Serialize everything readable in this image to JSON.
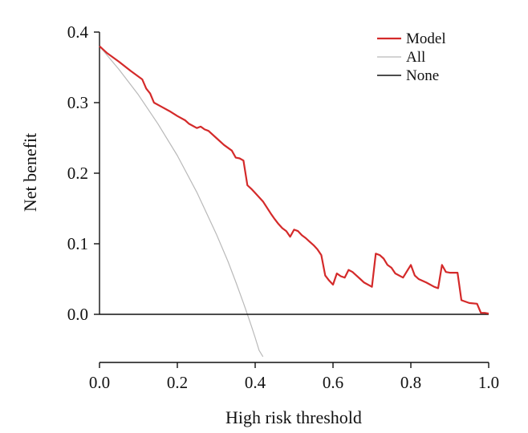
{
  "chart_data": {
    "type": "line",
    "title": "",
    "xlabel": "High risk threshold",
    "ylabel": "Net benefit",
    "xlim": [
      0.0,
      1.0
    ],
    "ylim": [
      -0.06,
      0.4
    ],
    "xticks": [
      "0.0",
      "0.2",
      "0.4",
      "0.6",
      "0.8",
      "1.0"
    ],
    "yticks": [
      "0.0",
      "0.1",
      "0.2",
      "0.3",
      "0.4"
    ],
    "grid": false,
    "legend_position": "top-right",
    "series": [
      {
        "name": "Model",
        "color": "#d42a2a",
        "x": [
          0.0,
          0.02,
          0.05,
          0.08,
          0.11,
          0.12,
          0.13,
          0.14,
          0.16,
          0.18,
          0.2,
          0.22,
          0.23,
          0.24,
          0.25,
          0.26,
          0.27,
          0.28,
          0.3,
          0.32,
          0.34,
          0.35,
          0.36,
          0.37,
          0.38,
          0.39,
          0.4,
          0.42,
          0.44,
          0.45,
          0.46,
          0.47,
          0.48,
          0.49,
          0.5,
          0.51,
          0.52,
          0.53,
          0.54,
          0.55,
          0.56,
          0.57,
          0.58,
          0.59,
          0.6,
          0.61,
          0.62,
          0.63,
          0.64,
          0.65,
          0.66,
          0.67,
          0.68,
          0.7,
          0.71,
          0.72,
          0.73,
          0.74,
          0.75,
          0.76,
          0.78,
          0.8,
          0.81,
          0.82,
          0.84,
          0.86,
          0.87,
          0.88,
          0.89,
          0.9,
          0.92,
          0.93,
          0.95,
          0.97,
          0.98,
          0.99,
          1.0
        ],
        "y": [
          0.38,
          0.37,
          0.358,
          0.345,
          0.333,
          0.32,
          0.313,
          0.3,
          0.294,
          0.288,
          0.281,
          0.275,
          0.27,
          0.267,
          0.264,
          0.266,
          0.262,
          0.26,
          0.25,
          0.24,
          0.232,
          0.222,
          0.221,
          0.218,
          0.183,
          0.178,
          0.172,
          0.16,
          0.143,
          0.135,
          0.128,
          0.122,
          0.118,
          0.11,
          0.12,
          0.118,
          0.112,
          0.108,
          0.103,
          0.098,
          0.092,
          0.084,
          0.055,
          0.048,
          0.042,
          0.058,
          0.054,
          0.052,
          0.063,
          0.06,
          0.055,
          0.05,
          0.045,
          0.039,
          0.086,
          0.084,
          0.079,
          0.07,
          0.066,
          0.058,
          0.052,
          0.07,
          0.055,
          0.05,
          0.045,
          0.039,
          0.037,
          0.07,
          0.06,
          0.059,
          0.059,
          0.02,
          0.016,
          0.015,
          0.002,
          0.002,
          0.001
        ]
      },
      {
        "name": "All",
        "color": "#b9b9b9",
        "x": [
          0.0,
          0.05,
          0.1,
          0.15,
          0.2,
          0.25,
          0.3,
          0.33,
          0.35,
          0.37,
          0.38,
          0.39,
          0.4,
          0.41,
          0.42
        ],
        "y": [
          0.38,
          0.347,
          0.311,
          0.27,
          0.225,
          0.173,
          0.114,
          0.075,
          0.046,
          0.016,
          0.0,
          -0.016,
          -0.033,
          -0.051,
          -0.069
        ]
      },
      {
        "name": "None",
        "color": "#111111",
        "x": [
          0.0,
          1.0
        ],
        "y": [
          0.0,
          0.0
        ]
      }
    ]
  }
}
